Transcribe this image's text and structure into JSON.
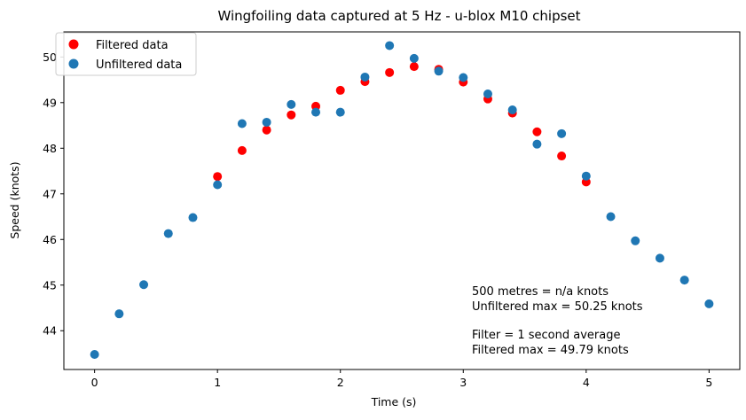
{
  "chart_data": {
    "type": "scatter",
    "title": "Wingfoiling data captured at 5 Hz - u-blox M10 chipset",
    "xlabel": "Time (s)",
    "ylabel": "Speed (knots)",
    "xlim": [
      -0.25,
      5.25
    ],
    "ylim": [
      43.15,
      50.55
    ],
    "xticks": [
      0,
      1,
      2,
      3,
      4,
      5
    ],
    "yticks": [
      44,
      45,
      46,
      47,
      48,
      49,
      50
    ],
    "grid": false,
    "legend_position": "top-left",
    "series": [
      {
        "name": "Filtered data",
        "color": "#ff0000",
        "x": [
          1.0,
          1.2,
          1.4,
          1.6,
          1.8,
          2.0,
          2.2,
          2.4,
          2.6,
          2.8,
          3.0,
          3.2,
          3.4,
          3.6,
          3.8,
          4.0
        ],
        "y": [
          47.38,
          47.95,
          48.4,
          48.73,
          48.92,
          49.27,
          49.46,
          49.66,
          49.79,
          49.73,
          49.45,
          49.08,
          48.77,
          48.36,
          47.83,
          47.26
        ]
      },
      {
        "name": "Unfiltered data",
        "color": "#1f77b4",
        "x": [
          0.0,
          0.2,
          0.4,
          0.6,
          0.8,
          1.0,
          1.2,
          1.4,
          1.6,
          1.8,
          2.0,
          2.2,
          2.4,
          2.6,
          2.8,
          3.0,
          3.2,
          3.4,
          3.6,
          3.8,
          4.0,
          4.2,
          4.4,
          4.6,
          4.8,
          5.0
        ],
        "y": [
          43.48,
          44.37,
          45.01,
          46.13,
          46.48,
          47.2,
          48.54,
          48.57,
          48.96,
          48.79,
          48.79,
          49.56,
          50.25,
          49.97,
          49.69,
          49.55,
          49.19,
          48.84,
          48.09,
          48.32,
          47.39,
          46.5,
          45.97,
          45.59,
          45.11,
          44.59
        ]
      }
    ],
    "annotations": [
      "500 metres = n/a knots",
      "Unfiltered max = 50.25 knots",
      "",
      "Filter = 1 second average",
      "Filtered max = 49.79 knots"
    ]
  }
}
